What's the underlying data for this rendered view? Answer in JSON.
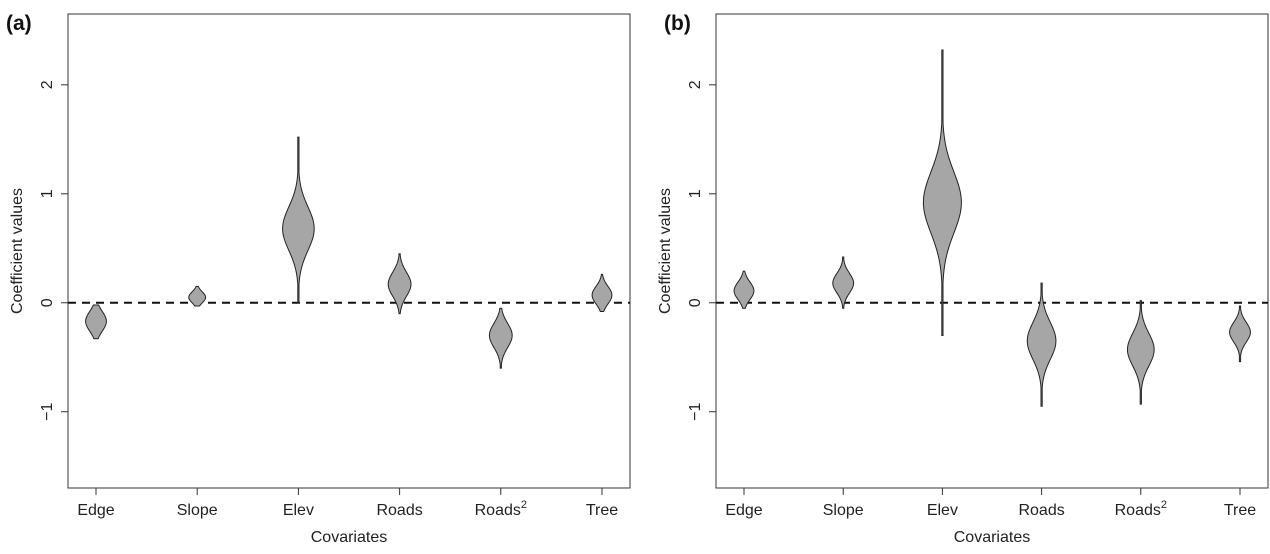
{
  "chart_data": [
    {
      "type": "violin",
      "panel_label": "(a)",
      "xlabel": "Covariates",
      "ylabel": "Coefficient values",
      "ylim": [
        -1.7,
        2.65
      ],
      "yticks": [
        -1,
        0,
        1,
        2
      ],
      "reference_line": {
        "y": 0,
        "style": "dashed"
      },
      "categories": [
        "Edge",
        "Slope",
        "Elev",
        "Roads",
        "Roads",
        "Tree"
      ],
      "category_superscripts": [
        "",
        "",
        "",
        "",
        "2",
        ""
      ],
      "fill_color": "#a6a6a6",
      "violins": [
        {
          "median": -0.17,
          "min": -0.33,
          "max": -0.02,
          "spread": 0.09
        },
        {
          "median": 0.05,
          "min": -0.03,
          "max": 0.15,
          "spread": 0.05
        },
        {
          "median": 0.68,
          "min": 0.0,
          "max": 1.52,
          "spread": 0.2
        },
        {
          "median": 0.17,
          "min": -0.1,
          "max": 0.45,
          "spread": 0.11
        },
        {
          "median": -0.3,
          "min": -0.6,
          "max": -0.05,
          "spread": 0.11
        },
        {
          "median": 0.07,
          "min": -0.08,
          "max": 0.26,
          "spread": 0.08
        }
      ]
    },
    {
      "type": "violin",
      "panel_label": "(b)",
      "xlabel": "Covariates",
      "ylabel": "Coefficient values",
      "ylim": [
        -1.7,
        2.65
      ],
      "yticks": [
        -1,
        0,
        1,
        2
      ],
      "reference_line": {
        "y": 0,
        "style": "dashed"
      },
      "categories": [
        "Edge",
        "Slope",
        "Elev",
        "Roads",
        "Roads",
        "Tree"
      ],
      "category_superscripts": [
        "",
        "",
        "",
        "",
        "2",
        ""
      ],
      "fill_color": "#a6a6a6",
      "violins": [
        {
          "median": 0.11,
          "min": -0.05,
          "max": 0.29,
          "spread": 0.08
        },
        {
          "median": 0.18,
          "min": -0.05,
          "max": 0.42,
          "spread": 0.09
        },
        {
          "median": 0.92,
          "min": -0.3,
          "max": 2.32,
          "spread": 0.28
        },
        {
          "median": -0.35,
          "min": -0.95,
          "max": 0.18,
          "spread": 0.17
        },
        {
          "median": -0.43,
          "min": -0.93,
          "max": 0.02,
          "spread": 0.15
        },
        {
          "median": -0.27,
          "min": -0.54,
          "max": -0.03,
          "spread": 0.09
        }
      ]
    }
  ]
}
